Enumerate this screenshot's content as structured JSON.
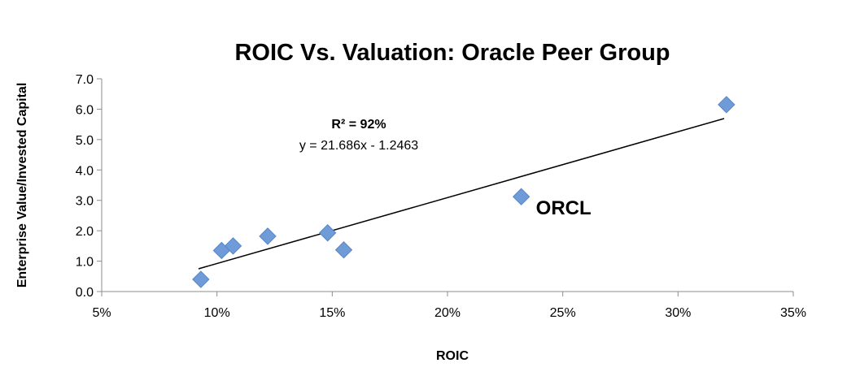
{
  "chart_data": {
    "type": "scatter",
    "title": "ROIC Vs. Valuation: Oracle Peer Group",
    "xlabel": "ROIC",
    "ylabel": "Enterprise Value/Invested Capital",
    "xlim": [
      0.05,
      0.35
    ],
    "ylim": [
      0,
      7
    ],
    "x_ticks": [
      "5%",
      "10%",
      "15%",
      "20%",
      "25%",
      "30%",
      "35%"
    ],
    "y_ticks": [
      "0.0",
      "1.0",
      "2.0",
      "3.0",
      "4.0",
      "5.0",
      "6.0",
      "7.0"
    ],
    "grid": false,
    "marker_color": "#6f9bd8",
    "trendline_color": "#000000",
    "points": [
      {
        "x": 0.093,
        "y": 0.4,
        "label": ""
      },
      {
        "x": 0.102,
        "y": 1.35,
        "label": ""
      },
      {
        "x": 0.107,
        "y": 1.5,
        "label": ""
      },
      {
        "x": 0.122,
        "y": 1.82,
        "label": ""
      },
      {
        "x": 0.148,
        "y": 1.93,
        "label": ""
      },
      {
        "x": 0.155,
        "y": 1.37,
        "label": ""
      },
      {
        "x": 0.232,
        "y": 3.12,
        "label": "ORCL"
      },
      {
        "x": 0.321,
        "y": 6.15,
        "label": ""
      }
    ],
    "trendline": {
      "x_range": [
        0.092,
        0.32
      ],
      "r2_text": "R² = 92%",
      "equation_text": "y = 21.686x - 1.2463"
    }
  }
}
